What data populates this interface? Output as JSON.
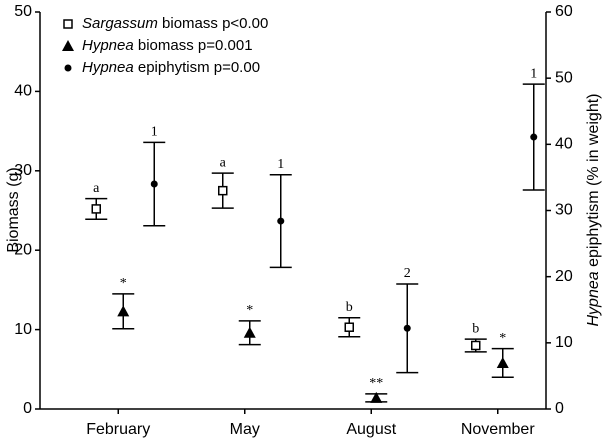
{
  "chart_data": {
    "type": "errorbar",
    "categories": [
      "February",
      "May",
      "August",
      "November"
    ],
    "y_label": "Biomass (g)",
    "y2_label": "Hypnea epiphytism (% in weight)",
    "ylim": [
      0,
      50
    ],
    "yticks": [
      0,
      10,
      20,
      30,
      40,
      50
    ],
    "y2lim": [
      0,
      60
    ],
    "y2ticks": [
      0,
      10,
      20,
      30,
      40,
      50,
      60
    ],
    "legend": "upper left",
    "series": [
      {
        "name": "Sargassum biomass p<0.00",
        "marker": "square",
        "color": "#000000",
        "values": [
          25.2,
          27.5,
          10.3,
          8.0
        ],
        "errors": [
          1.3,
          2.2,
          1.2,
          0.8
        ],
        "labels": [
          "a",
          "a",
          "b",
          "b"
        ]
      },
      {
        "name": "Hypnea biomass p=0.001",
        "marker": "triangle",
        "color": "#000000",
        "values": [
          12.3,
          9.6,
          1.4,
          5.8
        ],
        "errors": [
          2.2,
          1.5,
          0.5,
          1.8
        ],
        "labels": [
          "*",
          "*",
          "**",
          "*"
        ]
      },
      {
        "name": "Hypnea epiphytism p=0.00",
        "marker": "circle",
        "color": "#000000",
        "axis": "y2",
        "values": [
          34.0,
          28.4,
          12.2,
          41.1
        ],
        "errors": [
          6.3,
          7.0,
          6.7,
          8.0
        ],
        "labels": [
          "1",
          "1",
          "2",
          "1"
        ]
      }
    ]
  }
}
